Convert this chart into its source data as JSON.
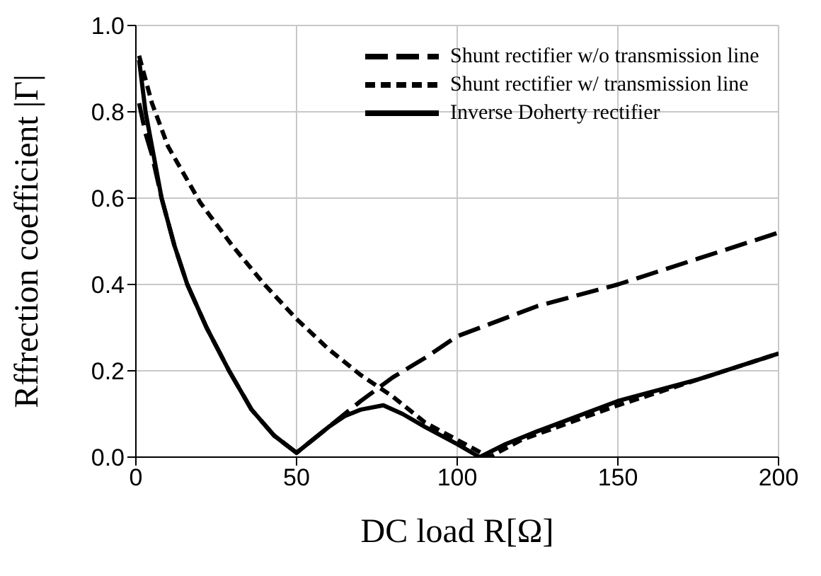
{
  "chart_data": {
    "type": "line",
    "xlabel": "DC load R[Ω]",
    "ylabel": "Rffrection coefficient |Γ|",
    "xlim": [
      0,
      200
    ],
    "xticks": [
      0,
      50,
      100,
      150,
      200
    ],
    "ylim": [
      0,
      1
    ],
    "yticks": [
      {
        "value": 0,
        "label": "0.0"
      },
      {
        "value": 0.2,
        "label": "0.2"
      },
      {
        "value": 0.4,
        "label": "0.4"
      },
      {
        "value": 0.6,
        "label": "0.6"
      },
      {
        "value": 0.8,
        "label": "0.8"
      },
      {
        "value": 1,
        "label": "1.0"
      }
    ],
    "grid": true,
    "legend": "top right",
    "marker": "none",
    "series": [
      {
        "name": "Shunt rectifier w/o transmission line",
        "color": "#000000",
        "line_style": "dashed",
        "x": [
          1,
          3,
          5,
          8,
          12,
          16,
          22,
          29,
          36,
          43,
          50,
          55,
          60,
          70,
          80,
          90,
          100,
          125,
          150,
          175,
          200
        ],
        "values": [
          0.82,
          0.75,
          0.7,
          0.6,
          0.49,
          0.4,
          0.3,
          0.2,
          0.11,
          0.05,
          0.01,
          0.04,
          0.07,
          0.13,
          0.185,
          0.23,
          0.28,
          0.35,
          0.4,
          0.46,
          0.52
        ]
      },
      {
        "name": "Shunt rectifier w/ transmission line",
        "color": "#000000",
        "line_style": "dotted",
        "x": [
          1,
          5,
          10,
          20,
          30,
          40,
          50,
          60,
          70,
          80,
          90,
          100,
          110,
          120,
          150,
          175,
          200
        ],
        "values": [
          0.93,
          0.82,
          0.72,
          0.59,
          0.49,
          0.4,
          0.32,
          0.25,
          0.19,
          0.14,
          0.08,
          0.04,
          0.0,
          0.04,
          0.12,
          0.18,
          0.24
        ]
      },
      {
        "name": "Inverse Doherty rectifier",
        "color": "#000000",
        "line_style": "solid",
        "x": [
          1,
          3,
          5,
          8,
          12,
          16,
          22,
          29,
          36,
          43,
          50,
          55,
          60,
          65,
          70,
          77,
          83,
          90,
          100,
          107,
          115,
          125,
          150,
          175,
          200
        ],
        "values": [
          0.92,
          0.8,
          0.72,
          0.6,
          0.49,
          0.4,
          0.3,
          0.2,
          0.11,
          0.05,
          0.01,
          0.04,
          0.07,
          0.095,
          0.11,
          0.12,
          0.1,
          0.07,
          0.03,
          0.0,
          0.03,
          0.06,
          0.13,
          0.18,
          0.24
        ]
      }
    ]
  }
}
